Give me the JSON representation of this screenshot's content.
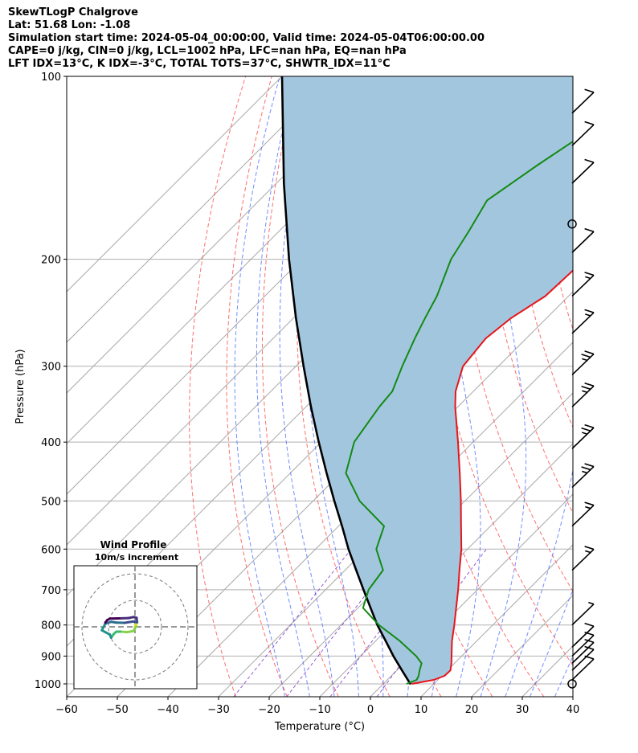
{
  "header": {
    "title": "SkewTLogP Chalgrove",
    "location": "Lat: 51.68   Lon: -1.08",
    "times": "Simulation start time: 2024-05-04_00:00:00, Valid time: 2024-05-04T06:00:00.00",
    "indices1": "CAPE=0 j/kg, CIN=0 j/kg, LCL=1002 hPa, LFC=nan hPa, EQ=nan hPa",
    "indices2": "LFT IDX=13°C, K IDX=-3°C, TOTAL TOTS=37°C, SHWTR_IDX=11°C"
  },
  "colors": {
    "temperature": "#e8141a",
    "dewpoint": "#138a13",
    "parcel": "#000000",
    "fill": "#a3c6df",
    "dry_adiabat": "#ff5555",
    "moist_adiabat": "#4466ff",
    "mixing_ratio": "#7b2fc9",
    "isotherm": "#aaaaaa"
  },
  "chart_data": {
    "type": "line",
    "xlabel": "Temperature (°C)",
    "ylabel": "Pressure (hPa)",
    "xlim": [
      -60,
      40
    ],
    "ylim": [
      1050,
      100
    ],
    "yscale": "log",
    "skew": "isotherms tilted 45°",
    "grid": true,
    "xticks": [
      -60,
      -50,
      -40,
      -30,
      -20,
      -10,
      0,
      10,
      20,
      30,
      40
    ],
    "yticks": [
      100,
      200,
      300,
      400,
      500,
      600,
      700,
      800,
      900,
      1000
    ],
    "temperature": {
      "p": [
        1000,
        985,
        970,
        950,
        925,
        900,
        850,
        800,
        750,
        700,
        650,
        600,
        550,
        500,
        450,
        400,
        350,
        330,
        300,
        270,
        250,
        230,
        200,
        180,
        160,
        140,
        120,
        100
      ],
      "t": [
        5.6,
        9.2,
        10.5,
        10.6,
        9.4,
        8.0,
        5.1,
        2.4,
        -0.6,
        -3.8,
        -7.4,
        -11.2,
        -15.8,
        -20.8,
        -26.5,
        -33.0,
        -40.5,
        -43.5,
        -47.0,
        -48.0,
        -47.0,
        -44.6,
        -44.0,
        -43.0,
        -40.0,
        -36.0,
        -31.5,
        -25.5
      ]
    },
    "dewpoint": {
      "p": [
        1000,
        985,
        970,
        950,
        925,
        900,
        850,
        800,
        750,
        700,
        650,
        600,
        550,
        500,
        450,
        400,
        350,
        330,
        300,
        270,
        250,
        230,
        200,
        180,
        160,
        140,
        120,
        100
      ],
      "t": [
        4.6,
        5.8,
        5.4,
        4.5,
        3.5,
        1.0,
        -5.2,
        -12.5,
        -19.0,
        -21.5,
        -22.5,
        -28.0,
        -31.0,
        -40.8,
        -49.0,
        -53.5,
        -55.5,
        -56.0,
        -59.0,
        -62.0,
        -64.0,
        -66.0,
        -70.5,
        -72.5,
        -75.0,
        -72.0,
        -68.0,
        -62.0
      ]
    },
    "parcel": {
      "p": [
        1002,
        950,
        900,
        850,
        800,
        750,
        700,
        650,
        600,
        550,
        500,
        450,
        400,
        350,
        300,
        250,
        200,
        150,
        100
      ],
      "t": [
        5.5,
        1.0,
        -3.5,
        -8.0,
        -12.8,
        -17.5,
        -22.5,
        -27.8,
        -33.5,
        -39.3,
        -45.8,
        -52.8,
        -60.5,
        -69.0,
        -78.5,
        -89.5,
        -102.5,
        -118.5,
        -140.0
      ]
    },
    "wind_barbs": [
      {
        "p": 1000,
        "calm": true
      },
      {
        "p": 985,
        "speed_kt": 10
      },
      {
        "p": 950,
        "speed_kt": 10
      },
      {
        "p": 925,
        "speed_kt": 10
      },
      {
        "p": 900,
        "speed_kt": 10
      },
      {
        "p": 870,
        "speed_kt": 10
      },
      {
        "p": 800,
        "speed_kt": 5
      },
      {
        "p": 650,
        "speed_kt": 15
      },
      {
        "p": 550,
        "speed_kt": 15
      },
      {
        "p": 475,
        "speed_kt": 25
      },
      {
        "p": 410,
        "speed_kt": 25
      },
      {
        "p": 350,
        "speed_kt": 25
      },
      {
        "p": 310,
        "speed_kt": 25
      },
      {
        "p": 265,
        "speed_kt": 15
      },
      {
        "p": 230,
        "speed_kt": 15
      },
      {
        "p": 195,
        "speed_kt": 10
      },
      {
        "p": 175,
        "calm": true
      },
      {
        "p": 150,
        "speed_kt": 10
      },
      {
        "p": 130,
        "speed_kt": 10
      },
      {
        "p": 115,
        "speed_kt": 10
      }
    ],
    "hodograph": {
      "title": "Wind Profile",
      "subtitle": "10m/s increment",
      "u": [
        0,
        0.3,
        0.5,
        0.4,
        -0.6,
        -3.0,
        -5.5,
        -7.0,
        -8.0,
        -9.0,
        -9.5,
        -12.5,
        -11.2,
        -9.0,
        -7.0,
        -4.0,
        -0.8,
        0.8,
        0.6,
        -0.5,
        -2.5,
        -6.0,
        -9.5,
        -10.5,
        -11.2
      ],
      "v": [
        0,
        0.8,
        1.3,
        0.1,
        -1.6,
        -2.0,
        -1.8,
        -1.8,
        -2.7,
        -4.1,
        -2.9,
        -1.3,
        1.2,
        1.9,
        1.6,
        1.5,
        2.0,
        1.7,
        3.4,
        3.7,
        3.3,
        3.2,
        3.1,
        2.5,
        1.6
      ]
    }
  }
}
